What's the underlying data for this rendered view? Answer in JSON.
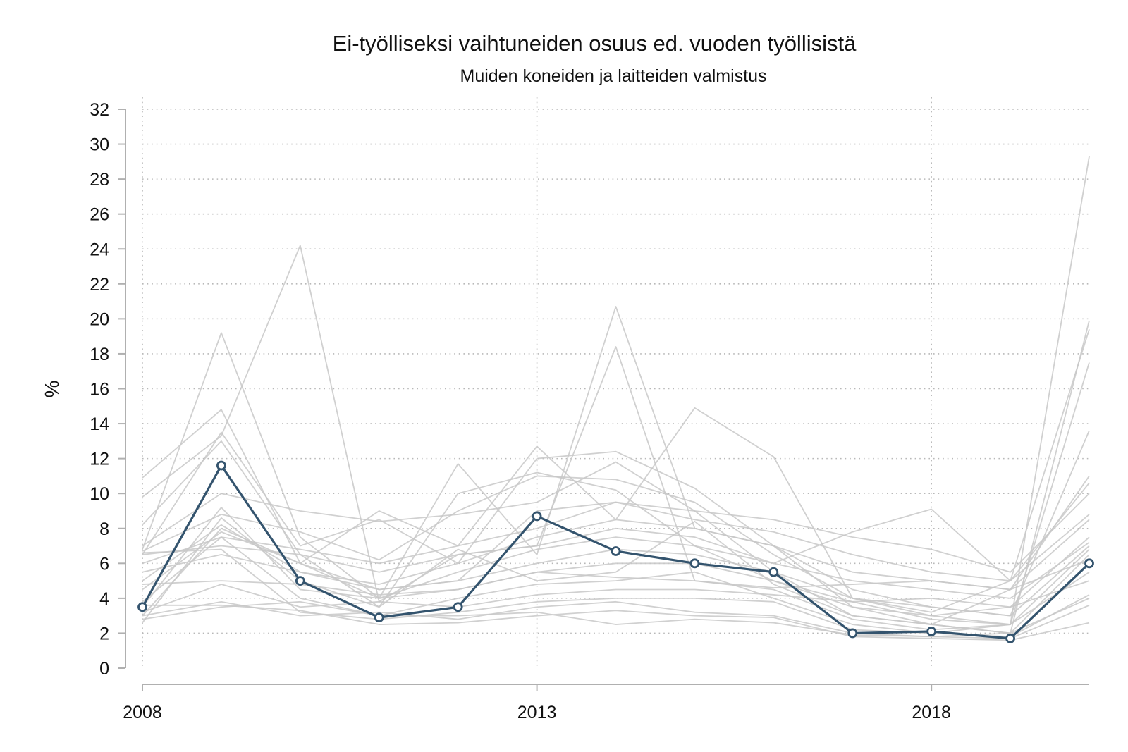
{
  "chart_data": {
    "type": "line",
    "title": "Ei-työlliseksi vaihtuneiden osuus ed. vuoden työllisistä",
    "subtitle": "Muiden koneiden ja laitteiden valmistus",
    "xlabel": "",
    "ylabel": "%",
    "xlim": [
      2008,
      2020
    ],
    "ylim": [
      0,
      32
    ],
    "x": [
      2008,
      2009,
      2010,
      2011,
      2012,
      2013,
      2014,
      2015,
      2016,
      2017,
      2018,
      2019,
      2020
    ],
    "x_ticks": [
      "2008",
      "2013",
      "2018"
    ],
    "y_ticks": [
      "0",
      "2",
      "4",
      "6",
      "8",
      "10",
      "12",
      "14",
      "16",
      "18",
      "20",
      "22",
      "24",
      "26",
      "28",
      "30",
      "32"
    ],
    "grid": "dotted, major ticks both axes",
    "highlight_color": "#34546e",
    "background_color": "#c8c8c8",
    "highlight": {
      "values": [
        3.5,
        11.6,
        5.0,
        2.9,
        3.5,
        8.7,
        6.7,
        6.0,
        5.5,
        2.0,
        2.1,
        1.7,
        6.0
      ]
    },
    "background_series": [
      [
        6.8,
        19.2,
        7.5,
        4.0,
        11.7,
        6.5,
        20.7,
        8.0,
        7.0,
        3.5,
        2.5,
        2.0,
        19.9
      ],
      [
        9.8,
        13.3,
        24.2,
        3.8,
        6.5,
        7.0,
        18.4,
        5.0,
        4.5,
        2.8,
        2.2,
        2.5,
        29.3
      ],
      [
        10.9,
        14.8,
        6.0,
        9.0,
        7.0,
        12.7,
        8.5,
        14.9,
        12.1,
        4.0,
        3.0,
        2.5,
        17.5
      ],
      [
        6.5,
        13.5,
        7.0,
        8.5,
        6.0,
        12.0,
        12.4,
        10.3,
        7.0,
        4.5,
        3.5,
        3.0,
        13.6
      ],
      [
        8.2,
        13.0,
        6.5,
        3.5,
        10.0,
        11.2,
        10.2,
        7.0,
        6.0,
        7.8,
        9.1,
        5.0,
        19.4
      ],
      [
        7.0,
        10.0,
        9.0,
        8.4,
        8.8,
        9.5,
        11.8,
        9.0,
        5.5,
        3.0,
        2.5,
        4.5,
        11.0
      ],
      [
        6.7,
        8.8,
        7.8,
        6.2,
        9.0,
        11.0,
        10.8,
        9.5,
        6.5,
        4.0,
        3.2,
        5.0,
        10.6
      ],
      [
        3.0,
        8.0,
        6.0,
        4.5,
        5.0,
        9.0,
        9.5,
        9.0,
        8.5,
        7.5,
        6.8,
        5.5,
        10.0
      ],
      [
        6.0,
        7.5,
        6.8,
        6.0,
        7.0,
        8.0,
        9.5,
        8.5,
        7.8,
        6.5,
        5.5,
        5.0,
        8.8
      ],
      [
        5.0,
        8.2,
        5.5,
        4.8,
        6.0,
        7.5,
        8.5,
        8.0,
        7.0,
        5.5,
        5.0,
        4.5,
        8.5
      ],
      [
        6.5,
        7.0,
        6.5,
        5.5,
        6.5,
        7.0,
        8.0,
        7.5,
        6.0,
        5.0,
        4.5,
        4.0,
        7.2
      ],
      [
        4.5,
        7.8,
        6.0,
        4.0,
        5.5,
        6.8,
        7.5,
        7.0,
        5.0,
        3.5,
        3.0,
        3.5,
        7.5
      ],
      [
        5.5,
        6.5,
        5.5,
        4.5,
        5.0,
        6.0,
        6.8,
        6.5,
        5.5,
        4.0,
        3.5,
        3.0,
        7.0
      ],
      [
        3.5,
        9.2,
        4.5,
        4.0,
        4.5,
        5.5,
        6.0,
        6.0,
        5.0,
        3.8,
        2.8,
        2.5,
        6.8
      ],
      [
        2.6,
        8.6,
        5.0,
        3.5,
        6.8,
        5.0,
        5.5,
        8.4,
        4.8,
        3.0,
        2.5,
        2.0,
        6.5
      ],
      [
        4.8,
        5.0,
        4.8,
        4.2,
        4.5,
        5.5,
        5.2,
        5.0,
        4.6,
        4.8,
        5.0,
        4.5,
        6.2
      ],
      [
        3.8,
        7.5,
        4.0,
        3.0,
        4.0,
        4.8,
        5.0,
        5.5,
        4.0,
        2.5,
        2.0,
        2.5,
        5.5
      ],
      [
        3.2,
        4.8,
        3.5,
        3.8,
        3.5,
        4.2,
        4.5,
        4.5,
        4.2,
        3.8,
        4.0,
        3.5,
        5.0
      ],
      [
        6.6,
        6.8,
        3.2,
        2.8,
        3.2,
        3.8,
        4.0,
        4.0,
        3.8,
        2.2,
        2.0,
        1.8,
        4.2
      ],
      [
        3.0,
        3.8,
        3.0,
        3.2,
        2.8,
        3.5,
        3.8,
        3.2,
        3.0,
        2.0,
        1.8,
        2.0,
        4.0
      ],
      [
        2.8,
        3.5,
        3.8,
        3.0,
        3.0,
        3.2,
        2.5,
        2.8,
        2.6,
        1.9,
        1.8,
        1.7,
        3.6
      ],
      [
        3.6,
        3.6,
        3.3,
        2.5,
        2.6,
        3.0,
        3.3,
        3.0,
        2.9,
        1.8,
        1.7,
        1.6,
        2.6
      ]
    ]
  }
}
